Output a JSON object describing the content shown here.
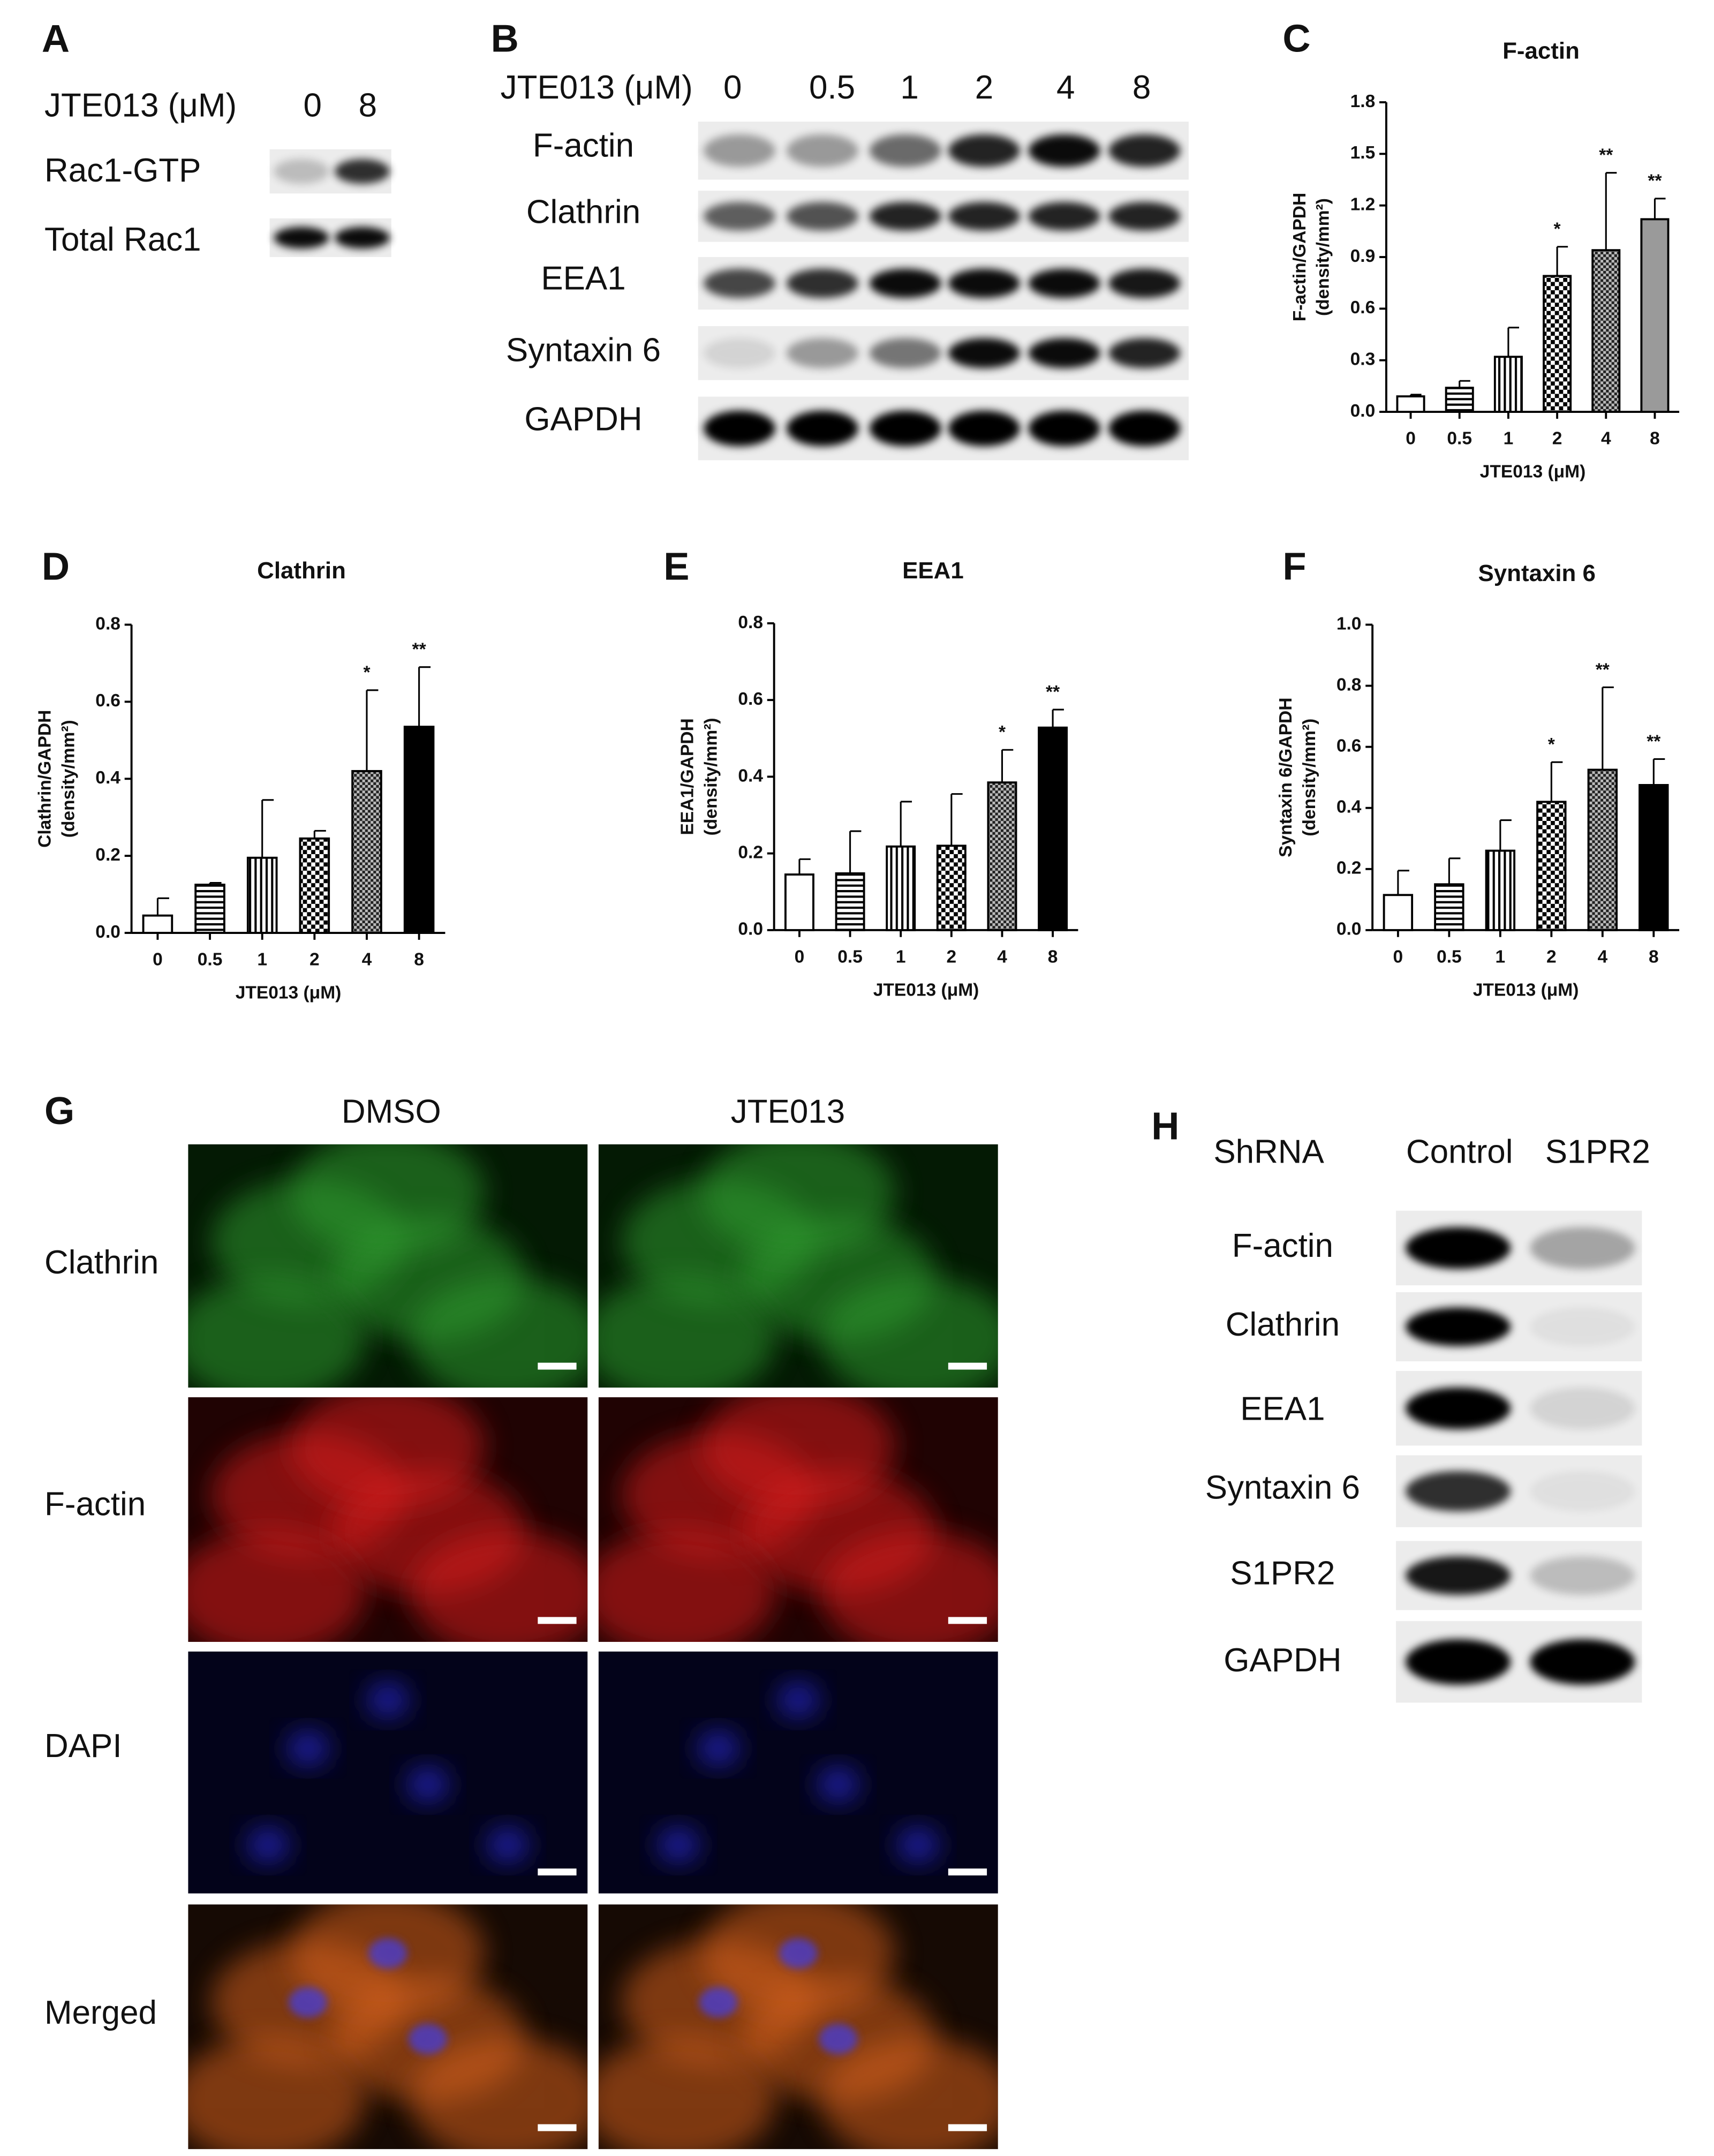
{
  "panels": {
    "A": {
      "letter": "A",
      "header": "JTE013 (μM)",
      "lanes": [
        "0",
        "8"
      ],
      "rows": [
        "Rac1-GTP",
        "Total Rac1"
      ]
    },
    "B": {
      "letter": "B",
      "header": "JTE013 (μM)",
      "lanes": [
        "0",
        "0.5",
        "1",
        "2",
        "4",
        "8"
      ],
      "rows": [
        "F-actin",
        "Clathrin",
        "EEA1",
        "Syntaxin 6",
        "GAPDH"
      ]
    },
    "G": {
      "letter": "G",
      "columns": [
        "DMSO",
        "JTE013"
      ],
      "rows": [
        "Clathrin",
        "F-actin",
        "DAPI",
        "Merged"
      ]
    },
    "H": {
      "letter": "H",
      "header": "ShRNA",
      "lanes": [
        "Control",
        "S1PR2"
      ],
      "rows": [
        "F-actin",
        "Clathrin",
        "EEA1",
        "Syntaxin 6",
        "S1PR2",
        "GAPDH"
      ]
    }
  },
  "chart_data": [
    {
      "type": "bar",
      "letter": "C",
      "title": "F-actin",
      "categories": [
        "0",
        "0.5",
        "1",
        "2",
        "4",
        "8"
      ],
      "values": [
        0.09,
        0.14,
        0.32,
        0.79,
        0.94,
        1.12
      ],
      "errors": [
        0.01,
        0.04,
        0.17,
        0.17,
        0.45,
        0.12
      ],
      "significance": [
        null,
        null,
        null,
        "*",
        "**",
        "**"
      ],
      "fills": [
        "white",
        "hstripe",
        "vstripe",
        "checker",
        "fine-checker",
        "#9a9a9a"
      ],
      "ylim": [
        0,
        1.8
      ],
      "yticks": [
        {
          "value": 0,
          "label": "0.0"
        },
        0.3,
        0.6,
        0.9,
        1.2,
        1.5,
        1.8
      ],
      "xlabel": "JTE013 (μM)",
      "ylabel": [
        "F-actin/GAPDH",
        "(density/mm²)"
      ]
    },
    {
      "type": "bar",
      "letter": "D",
      "title": "Clathrin",
      "categories": [
        "0",
        "0.5",
        "1",
        "2",
        "4",
        "8"
      ],
      "values": [
        0.045,
        0.125,
        0.195,
        0.245,
        0.42,
        0.535
      ],
      "errors": [
        0.045,
        0.005,
        0.15,
        0.02,
        0.21,
        0.155
      ],
      "significance": [
        null,
        null,
        null,
        null,
        "*",
        "**"
      ],
      "fills": [
        "white",
        "hstripe",
        "vstripe",
        "checker",
        "fine-checker",
        "#000000"
      ],
      "ylim": [
        0,
        0.8
      ],
      "yticks": [
        {
          "value": 0,
          "label": "0.0"
        },
        0.2,
        0.4,
        0.6,
        0.8
      ],
      "xlabel": "JTE013 (μM)",
      "ylabel": [
        "Clathrin/GAPDH",
        "(density/mm²)"
      ]
    },
    {
      "type": "bar",
      "letter": "E",
      "title": "EEA1",
      "categories": [
        "0",
        "0.5",
        "1",
        "2",
        "4",
        "8"
      ],
      "values": [
        0.145,
        0.148,
        0.218,
        0.22,
        0.385,
        0.528
      ],
      "errors": [
        0.04,
        0.11,
        0.117,
        0.135,
        0.085,
        0.047
      ],
      "significance": [
        null,
        null,
        null,
        null,
        "*",
        "**"
      ],
      "fills": [
        "white",
        "hstripe",
        "vstripe",
        "checker",
        "fine-checker",
        "#000000"
      ],
      "ylim": [
        0,
        0.8
      ],
      "yticks": [
        {
          "value": 0,
          "label": "0.0"
        },
        0.2,
        0.4,
        0.6,
        0.8
      ],
      "xlabel": "JTE013 (μM)",
      "ylabel": [
        "EEA1/GAPDH",
        "(density/mm²)"
      ]
    },
    {
      "type": "bar",
      "letter": "F",
      "title": "Syntaxin 6",
      "categories": [
        "0",
        "0.5",
        "1",
        "2",
        "4",
        "8"
      ],
      "values": [
        0.115,
        0.15,
        0.26,
        0.42,
        0.525,
        0.475
      ],
      "errors": [
        0.08,
        0.085,
        0.1,
        0.13,
        0.27,
        0.085
      ],
      "significance": [
        null,
        null,
        null,
        "*",
        "**",
        "**"
      ],
      "fills": [
        "white",
        "hstripe",
        "vstripe",
        "checker",
        "fine-checker",
        "#000000"
      ],
      "ylim": [
        0,
        1.0
      ],
      "yticks": [
        {
          "value": 0,
          "label": "0.0"
        },
        0.2,
        0.4,
        0.6,
        0.8,
        {
          "value": 1.0,
          "label": "1.0"
        }
      ],
      "xlabel": "JTE013 (μM)",
      "ylabel": [
        "Syntaxin 6/GAPDH",
        "(density/mm²)"
      ]
    }
  ]
}
